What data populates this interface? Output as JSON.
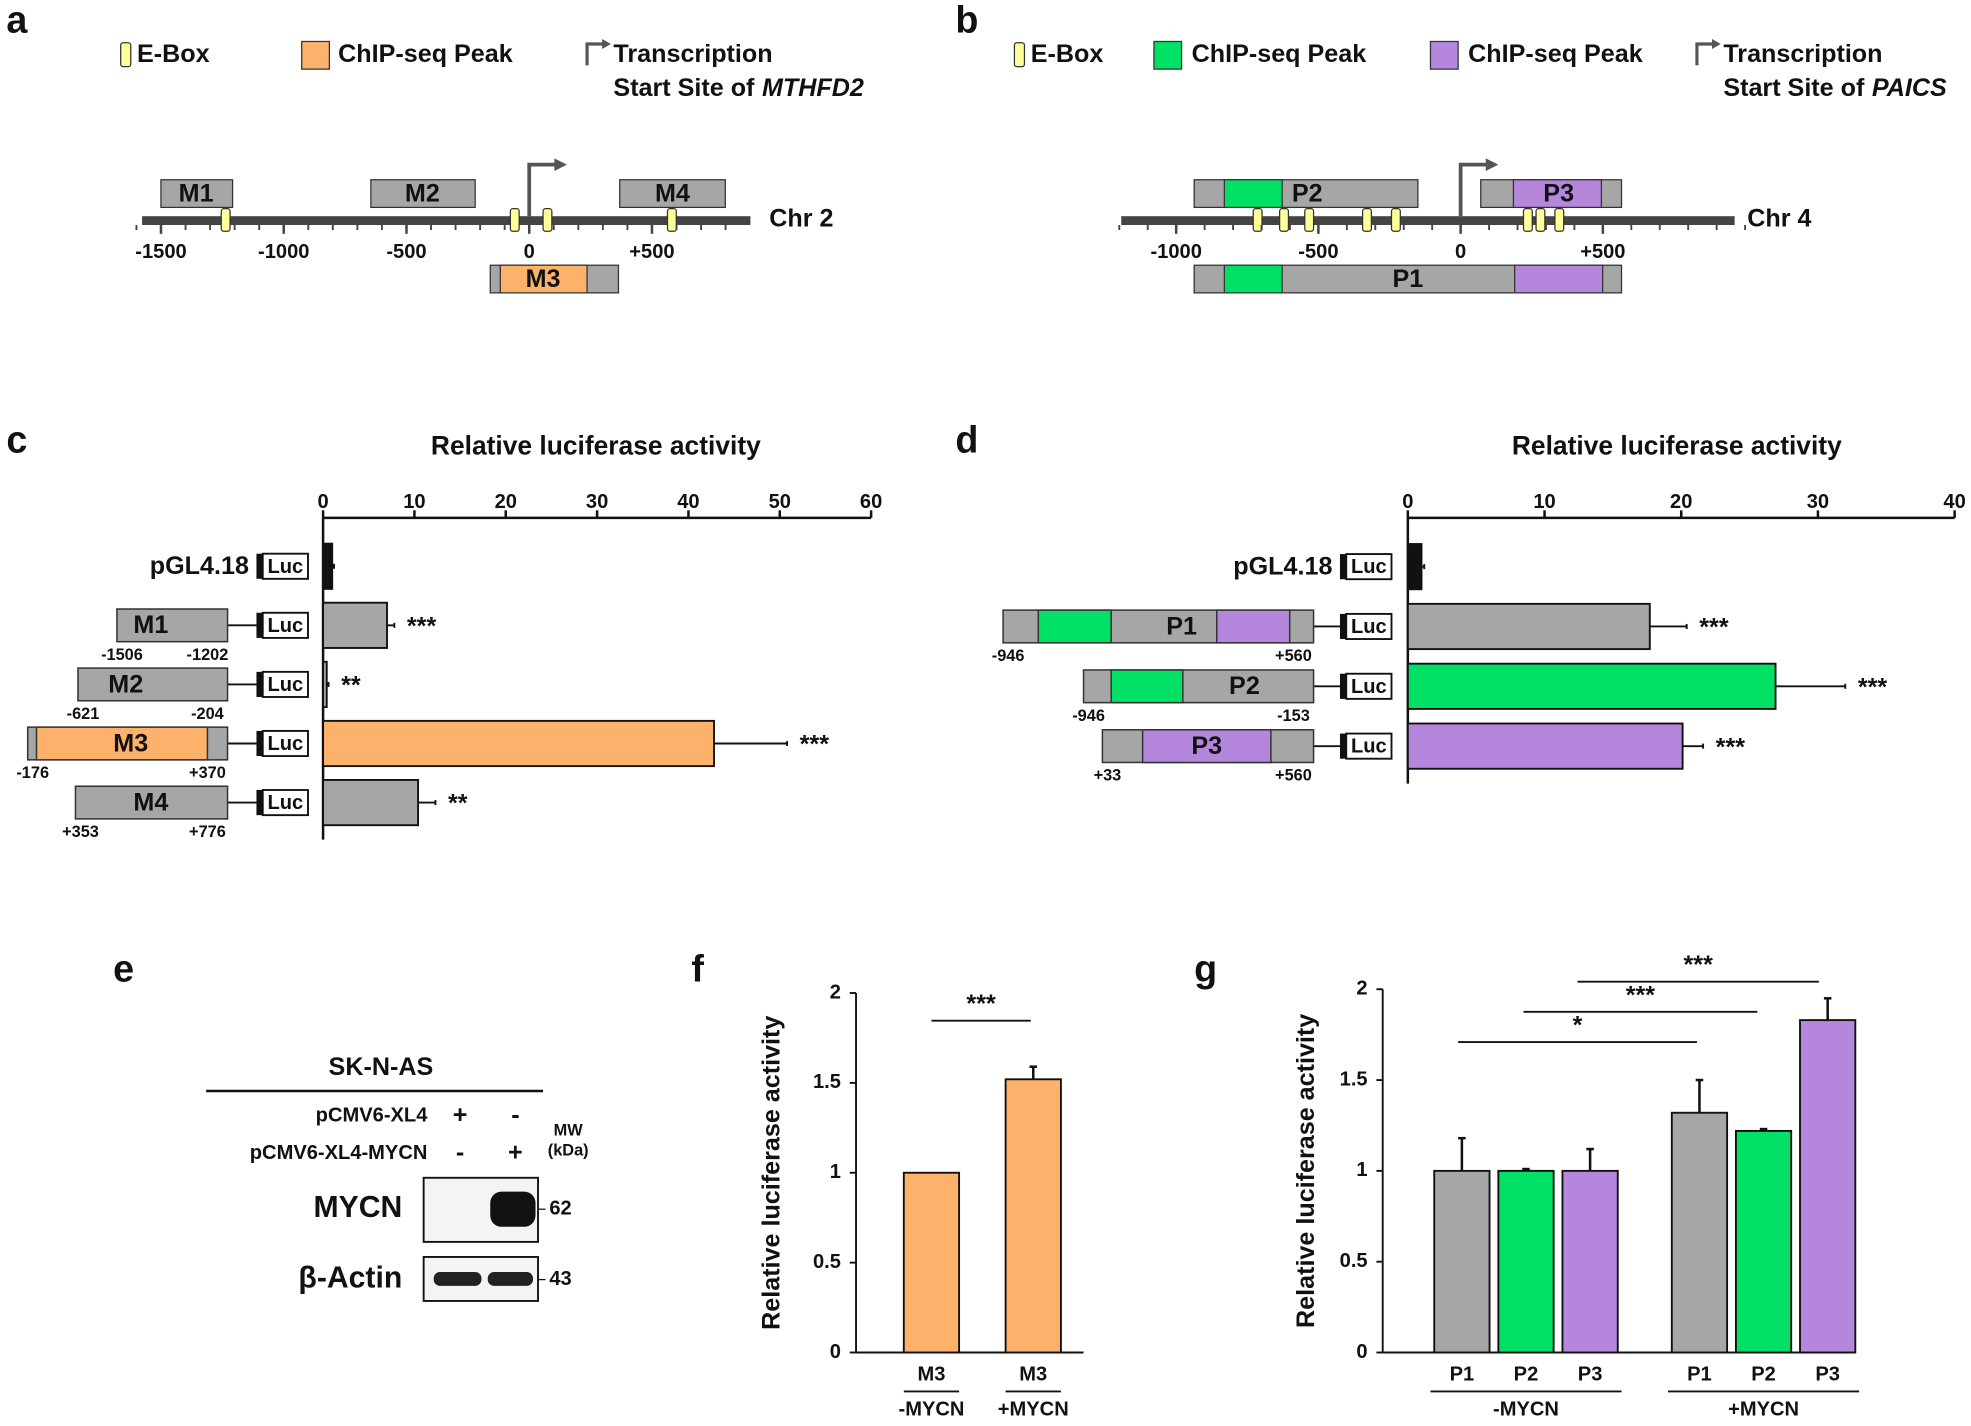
{
  "panel_labels": [
    "a",
    "b",
    "c",
    "d",
    "e",
    "f",
    "g"
  ],
  "diagram_a": {
    "legend": {
      "ebox": "E-Box",
      "peak": "ChIP-seq Peak",
      "tss_line1": "Transcription",
      "tss_line2": "Start Site of",
      "gene": "MTHFD2"
    },
    "regions": [
      "M1",
      "M2",
      "M3",
      "M4"
    ],
    "chromosome": "Chr 2",
    "ticks": [
      -1500,
      -1000,
      -500,
      0,
      {
        "value": 500,
        "label": "+500"
      }
    ]
  },
  "diagram_b": {
    "legend": {
      "ebox": "E-Box",
      "peak_green": "ChIP-seq Peak",
      "peak_purple": "ChIP-seq Peak",
      "tss_line1": "Transcription",
      "tss_line2": "Start Site of",
      "gene": "PAICS"
    },
    "regions": [
      "P1",
      "P2",
      "P3"
    ],
    "chromosome": "Chr 4",
    "ticks": [
      -1000,
      -500,
      0,
      {
        "value": 500,
        "label": "+500"
      }
    ]
  },
  "blot_e": {
    "cell_line": "SK-N-AS",
    "rows": [
      {
        "label": "pCMV6-XL4",
        "lanes": [
          "+",
          "-"
        ]
      },
      {
        "label": "pCMV6-XL4-MYCN",
        "lanes": [
          "-",
          "+"
        ]
      }
    ],
    "mw_label": [
      "MW",
      "(kDa)"
    ],
    "proteins": [
      {
        "name": "MYCN",
        "mw": "62"
      },
      {
        "name": "β-Actin",
        "mw": "43"
      }
    ]
  },
  "chart_data": [
    {
      "type": "barh",
      "title": "Relative luciferase activity",
      "categories": [
        "pGL4.18",
        "M1",
        "M2",
        "M3",
        "M4"
      ],
      "values": [
        1,
        7,
        0.4,
        42.8,
        10.4
      ],
      "errors": [
        0.2,
        0.8,
        0.2,
        8,
        1.9
      ],
      "annotations": [
        null,
        "***",
        "**",
        "***",
        "**"
      ],
      "colors": [
        "#111111",
        "#a6a6a6",
        "#a6a6a6",
        "#fdb26b",
        "#a6a6a6"
      ],
      "xlim": [
        0,
        60
      ],
      "xticks": [
        0,
        10,
        20,
        30,
        40,
        50,
        60
      ],
      "reporter": "Luc",
      "constructs": [
        null,
        [
          "-1506",
          "-1202"
        ],
        [
          "-621",
          "-204"
        ],
        [
          "-176",
          "+370"
        ],
        [
          "+353",
          "+776"
        ]
      ]
    },
    {
      "type": "barh",
      "title": "Relative luciferase activity",
      "categories": [
        "pGL4.18",
        "P1",
        "P2",
        "P3"
      ],
      "values": [
        1,
        17.7,
        26.9,
        20.1
      ],
      "errors": [
        0.2,
        2.7,
        5.1,
        1.5
      ],
      "annotations": [
        null,
        "***",
        "***",
        "***"
      ],
      "colors": [
        "#111111",
        "#a6a6a6",
        "#00e064",
        "#b487dc"
      ],
      "xlim": [
        0,
        40
      ],
      "xticks": [
        0,
        10,
        20,
        30,
        40
      ],
      "reporter": "Luc",
      "constructs": [
        null,
        [
          "-946",
          "+560"
        ],
        [
          "-946",
          "-153"
        ],
        [
          "+33",
          "+560"
        ]
      ]
    },
    {
      "type": "bar",
      "ylabel": "Relative luciferase activity",
      "categories": [
        "M3",
        "M3"
      ],
      "groups": [
        "-MYCN",
        "+MYCN"
      ],
      "values": [
        1,
        1.52
      ],
      "errors": [
        null,
        0.07
      ],
      "colors": [
        "#fdb26b",
        "#fdb26b"
      ],
      "ylim": [
        0,
        2
      ],
      "yticks": [
        0,
        0.5,
        1,
        1.5,
        2
      ],
      "significance": [
        "***"
      ]
    },
    {
      "type": "bar",
      "ylabel": "Relative luciferase activity",
      "categories": [
        "P1",
        "P2",
        "P3",
        "P1",
        "P2",
        "P3"
      ],
      "groups": [
        "-MYCN",
        "+MYCN"
      ],
      "values": [
        1,
        1,
        1,
        1.32,
        1.22,
        1.83
      ],
      "errors": [
        0.18,
        0.01,
        0.12,
        0.18,
        0.01,
        0.12
      ],
      "colors": [
        "#a6a6a6",
        "#00e064",
        "#b487dc",
        "#a6a6a6",
        "#00e064",
        "#b487dc"
      ],
      "ylim": [
        0,
        2
      ],
      "yticks": [
        0,
        0.5,
        1,
        1.5,
        2
      ],
      "significance": [
        "*",
        "***",
        "***"
      ]
    }
  ]
}
